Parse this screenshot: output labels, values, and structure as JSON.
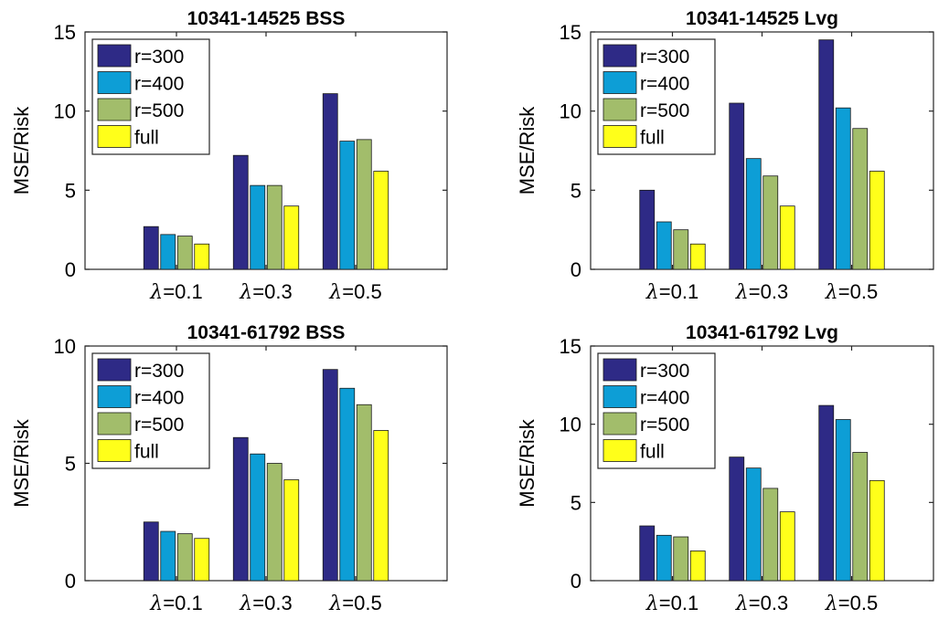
{
  "colors": {
    "r300": "#2e2a86",
    "r400": "#0d9ed6",
    "r500": "#a2bd6b",
    "full": "#ffff1a"
  },
  "chart_data": [
    {
      "type": "bar",
      "title": "10341-14525 BSS",
      "ylabel": "MSE/Risk",
      "ylim": [
        0,
        15
      ],
      "yticks": [
        0,
        5,
        10,
        15
      ],
      "categories": [
        "λ=0.1",
        "λ=0.3",
        "λ=0.5"
      ],
      "legend_position": "top-left",
      "series": [
        {
          "name": "r=300",
          "color_key": "r300",
          "values": [
            2.7,
            7.2,
            11.1
          ]
        },
        {
          "name": "r=400",
          "color_key": "r400",
          "values": [
            2.2,
            5.3,
            8.1
          ]
        },
        {
          "name": "r=500",
          "color_key": "r500",
          "values": [
            2.1,
            5.3,
            8.2
          ]
        },
        {
          "name": "full",
          "color_key": "full",
          "values": [
            1.6,
            4.0,
            6.2
          ]
        }
      ]
    },
    {
      "type": "bar",
      "title": "10341-14525 Lvg",
      "ylabel": "MSE/Risk",
      "ylim": [
        0,
        15
      ],
      "yticks": [
        0,
        5,
        10,
        15
      ],
      "categories": [
        "λ=0.1",
        "λ=0.3",
        "λ=0.5"
      ],
      "legend_position": "top-left",
      "series": [
        {
          "name": "r=300",
          "color_key": "r300",
          "values": [
            5.0,
            10.5,
            14.5
          ]
        },
        {
          "name": "r=400",
          "color_key": "r400",
          "values": [
            3.0,
            7.0,
            10.2
          ]
        },
        {
          "name": "r=500",
          "color_key": "r500",
          "values": [
            2.5,
            5.9,
            8.9
          ]
        },
        {
          "name": "full",
          "color_key": "full",
          "values": [
            1.6,
            4.0,
            6.2
          ]
        }
      ]
    },
    {
      "type": "bar",
      "title": "10341-61792 BSS",
      "ylabel": "MSE/Risk",
      "ylim": [
        0,
        10
      ],
      "yticks": [
        0,
        5,
        10
      ],
      "categories": [
        "λ=0.1",
        "λ=0.3",
        "λ=0.5"
      ],
      "legend_position": "top-left",
      "series": [
        {
          "name": "r=300",
          "color_key": "r300",
          "values": [
            2.5,
            6.1,
            9.0
          ]
        },
        {
          "name": "r=400",
          "color_key": "r400",
          "values": [
            2.1,
            5.4,
            8.2
          ]
        },
        {
          "name": "r=500",
          "color_key": "r500",
          "values": [
            2.0,
            5.0,
            7.5
          ]
        },
        {
          "name": "full",
          "color_key": "full",
          "values": [
            1.8,
            4.3,
            6.4
          ]
        }
      ]
    },
    {
      "type": "bar",
      "title": "10341-61792 Lvg",
      "ylabel": "MSE/Risk",
      "ylim": [
        0,
        15
      ],
      "yticks": [
        0,
        5,
        10,
        15
      ],
      "categories": [
        "λ=0.1",
        "λ=0.3",
        "λ=0.5"
      ],
      "legend_position": "top-left",
      "series": [
        {
          "name": "r=300",
          "color_key": "r300",
          "values": [
            3.5,
            7.9,
            11.2
          ]
        },
        {
          "name": "r=400",
          "color_key": "r400",
          "values": [
            2.9,
            7.2,
            10.3
          ]
        },
        {
          "name": "r=500",
          "color_key": "r500",
          "values": [
            2.8,
            5.9,
            8.2
          ]
        },
        {
          "name": "full",
          "color_key": "full",
          "values": [
            1.9,
            4.4,
            6.4
          ]
        }
      ]
    }
  ]
}
